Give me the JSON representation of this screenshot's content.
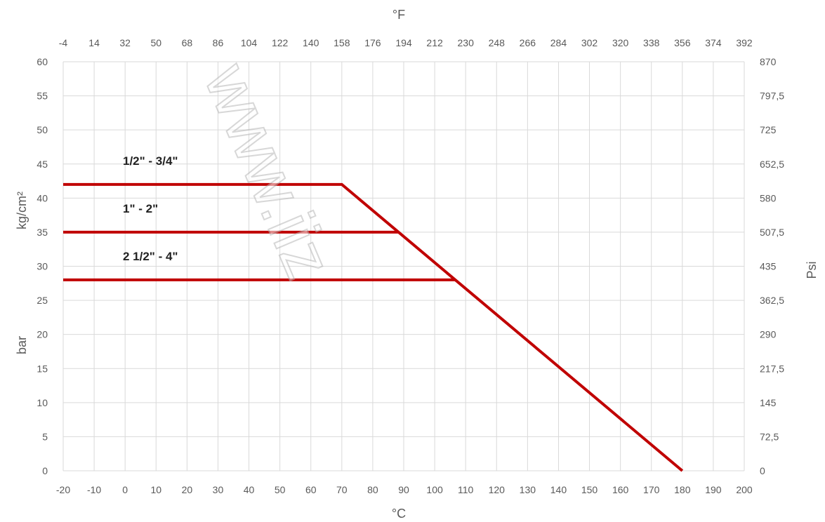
{
  "watermark": "www.iiz",
  "chart_data": {
    "type": "line",
    "x_bottom": {
      "label": "°C",
      "ticks": [
        -20,
        -10,
        0,
        10,
        20,
        30,
        40,
        50,
        60,
        70,
        80,
        90,
        100,
        110,
        120,
        130,
        140,
        150,
        160,
        170,
        180,
        190,
        200
      ],
      "range": [
        -20,
        200
      ]
    },
    "x_top": {
      "label": "°F",
      "ticks": [
        "-4",
        "14",
        "32",
        "50",
        "68",
        "86",
        "104",
        "122",
        "140",
        "158",
        "176",
        "194",
        "212",
        "230",
        "248",
        "266",
        "284",
        "302",
        "320",
        "338",
        "356",
        "374",
        "392"
      ]
    },
    "y_left": {
      "label_top": "kg/cm²",
      "label_bottom": "bar",
      "ticks": [
        0,
        5,
        10,
        15,
        20,
        25,
        30,
        35,
        40,
        45,
        50,
        55,
        60
      ],
      "range": [
        0,
        60
      ]
    },
    "y_right": {
      "label": "Psi",
      "ticks": [
        "0",
        "72,5",
        "145",
        "217,5",
        "290",
        "362,5",
        "435",
        "507,5",
        "580",
        "652,5",
        "725",
        "797,5",
        "870"
      ]
    },
    "grid": true,
    "line_color": "#c00000",
    "series": [
      {
        "name": "1/2\" - 3/4\"",
        "x": [
          -20,
          70,
          180
        ],
        "y": [
          42,
          42,
          0
        ]
      },
      {
        "name": "1\" - 2\"",
        "x": [
          -20,
          88.5
        ],
        "y": [
          35,
          35
        ]
      },
      {
        "name": "2 1/2\" - 4\"",
        "x": [
          -20,
          106.5
        ],
        "y": [
          28,
          28
        ]
      }
    ]
  }
}
